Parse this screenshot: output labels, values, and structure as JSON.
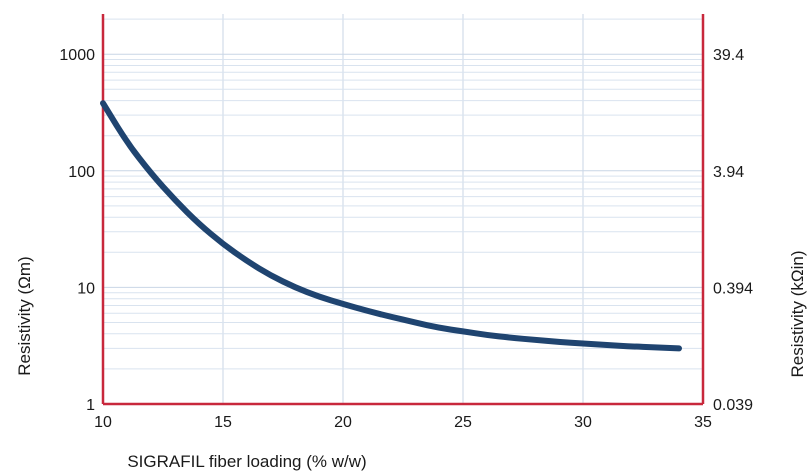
{
  "chart_data": {
    "type": "line",
    "xlabel": "SIGRAFIL fiber loading (% w/w)",
    "ylabel": "Resistivity (Ωm)",
    "ylabel_right": "Resistivity (kΩin)",
    "xlim": [
      10,
      35
    ],
    "ylim": [
      1,
      2000
    ],
    "y_scale": "log",
    "x_ticks": [
      "10",
      "15",
      "20",
      "25",
      "30",
      "35"
    ],
    "y_ticks": [
      "1",
      "10",
      "100",
      "1000"
    ],
    "y_ticks_right": [
      "0.039",
      "0.394",
      "3.94",
      "39.4"
    ],
    "grid": true,
    "colors": {
      "line": "#1f4470",
      "axis": "#c8283c",
      "grid_major": "#c9d6e6",
      "grid_minor": "#d9e3ef"
    },
    "series": [
      {
        "x": [
          10,
          11,
          12,
          13,
          14,
          15,
          16,
          17,
          18,
          19,
          20,
          21,
          22,
          23,
          24,
          25,
          26,
          27,
          28,
          29,
          30,
          31,
          32,
          33,
          34
        ],
        "y": [
          380,
          175,
          95,
          56,
          35,
          23.5,
          16.8,
          12.6,
          10,
          8.3,
          7.2,
          6.3,
          5.6,
          5.0,
          4.5,
          4.2,
          3.9,
          3.7,
          3.55,
          3.4,
          3.3,
          3.2,
          3.12,
          3.06,
          3.0
        ]
      }
    ]
  }
}
